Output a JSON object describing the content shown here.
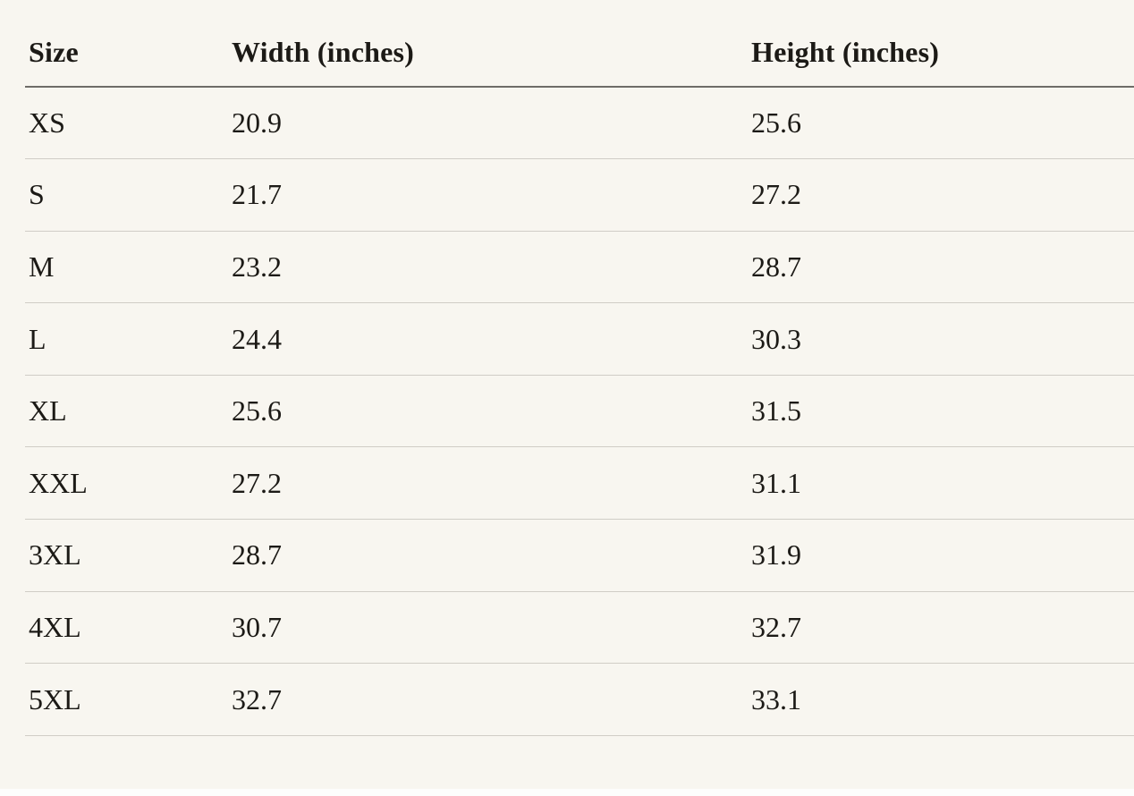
{
  "page": {
    "background_color": "#f8f6f0",
    "bottom_strip_color": "#fdfdfc",
    "text_color": "#1c1a16",
    "header_border_color": "#6e6c68",
    "row_border_color": "#d0cdc6"
  },
  "size_chart": {
    "columns": [
      {
        "key": "size",
        "label": "Size"
      },
      {
        "key": "width",
        "label": "Width (inches)"
      },
      {
        "key": "height",
        "label": "Height (inches)"
      }
    ],
    "rows": [
      {
        "size": "XS",
        "width": "20.9",
        "height": "25.6"
      },
      {
        "size": "S",
        "width": "21.7",
        "height": "27.2"
      },
      {
        "size": "M",
        "width": "23.2",
        "height": "28.7"
      },
      {
        "size": "L",
        "width": "24.4",
        "height": "30.3"
      },
      {
        "size": "XL",
        "width": "25.6",
        "height": "31.5"
      },
      {
        "size": "XXL",
        "width": "27.2",
        "height": "31.1"
      },
      {
        "size": "3XL",
        "width": "28.7",
        "height": "31.9"
      },
      {
        "size": "4XL",
        "width": "30.7",
        "height": "32.7"
      },
      {
        "size": "5XL",
        "width": "32.7",
        "height": "33.1"
      }
    ]
  }
}
